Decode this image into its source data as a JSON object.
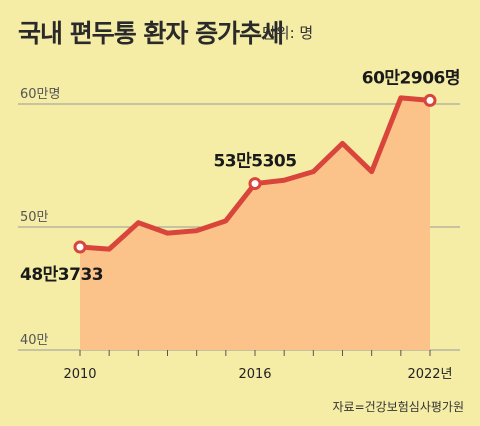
{
  "header": {
    "title": "국내 편두통 환자 증가추세",
    "unit": "단위: 명"
  },
  "source": "자료=건강보험심사평가원",
  "chart_data": {
    "type": "area",
    "title": "국내 편두통 환자 증가추세",
    "unit_label": "단위: 명",
    "x": [
      2010,
      2011,
      2012,
      2013,
      2014,
      2015,
      2016,
      2017,
      2018,
      2019,
      2020,
      2021,
      2022
    ],
    "series": [
      {
        "values": [
          483733,
          482000,
          503500,
          495000,
          497000,
          505000,
          535305,
          538000,
          545000,
          568000,
          545000,
          605000,
          602906
        ]
      }
    ],
    "ylim": [
      400000,
      620000
    ],
    "y_ticks": [
      {
        "value": 400000,
        "label": "40만"
      },
      {
        "value": 500000,
        "label": "50만"
      },
      {
        "value": 600000,
        "label": "60만명"
      }
    ],
    "x_ticks": [
      {
        "value": 2010,
        "label": "2010"
      },
      {
        "value": 2016,
        "label": "2016"
      },
      {
        "value": 2022,
        "label": "2022년"
      }
    ],
    "annotations": [
      {
        "x": 2010,
        "label": "48만3733",
        "position": "below"
      },
      {
        "x": 2016,
        "label": "53만5305",
        "position": "above"
      },
      {
        "x": 2022,
        "label": "60만2906명",
        "position": "above"
      }
    ],
    "grid": true,
    "colors": {
      "line": "#d9453a",
      "area": "#fbc38a",
      "marker_fill": "#ffffff",
      "grid": "#999999"
    }
  }
}
